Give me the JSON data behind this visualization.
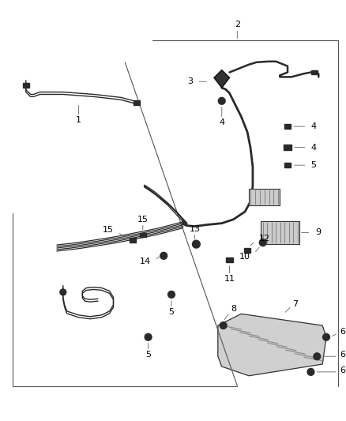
{
  "bg_color": "#ffffff",
  "fig_width": 4.38,
  "fig_height": 5.33,
  "dpi": 100,
  "line_color": "#2a2a2a",
  "label_color": "#000000",
  "leader_color": "#777777"
}
